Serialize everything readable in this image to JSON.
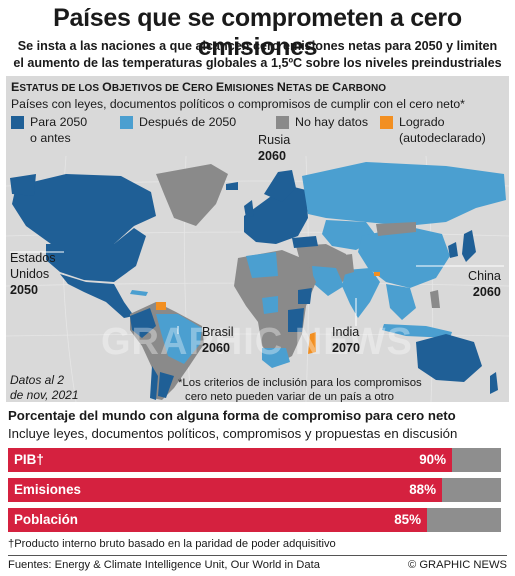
{
  "title": "Países que se comprometen a cero emisiones",
  "subtitle_line1": "Se insta a las naciones a que alcancen cero emisiones netas para 2050 y limiten",
  "subtitle_line2": "el aumento de las temperaturas globales a 1,5ºC sobre los niveles preindustriales",
  "map": {
    "heading_first": "E",
    "heading_words": [
      {
        "cap": "E",
        "rest": "STATUS DE LOS "
      },
      {
        "cap": "O",
        "rest": "BJETIVOS DE "
      },
      {
        "cap": "C",
        "rest": "ERO "
      },
      {
        "cap": "E",
        "rest": "MISIONES "
      },
      {
        "cap": "N",
        "rest": "ETAS DE "
      },
      {
        "cap": "C",
        "rest": "ARBONO"
      }
    ],
    "subheading": "Países con leyes, documentos políticos o compromisos de cumplir con el cero neto*",
    "legend": [
      {
        "line1": "Para 2050",
        "line2": "o antes",
        "color": "#1f5f96"
      },
      {
        "line1": "Después de 2050",
        "line2": "",
        "color": "#4b9fd0"
      },
      {
        "line1": "No hay datos",
        "line2": "",
        "color": "#8a8a8a"
      },
      {
        "line1": "Logrado",
        "line2": "(autodeclarado)",
        "color": "#f28f21"
      }
    ],
    "labels": {
      "usa_name1": "Estados",
      "usa_name2": "Unidos",
      "usa_year": "2050",
      "russia_name": "Rusia",
      "russia_year": "2060",
      "china_name": "China",
      "china_year": "2060",
      "brazil_name": "Brasil",
      "brazil_year": "2060",
      "india_name": "India",
      "india_year": "2070"
    },
    "date_note_line1": "Datos al 2",
    "date_note_line2": "de nov, 2021",
    "criteria_line1": "*Los criterios de inclusión para los compromisos",
    "criteria_line2": "cero neto pueden variar de un país a otro",
    "watermark": "GRAPHIC NEWS"
  },
  "bars": {
    "heading": "Porcentaje del mundo con alguna forma de compromiso para cero neto",
    "subheading": "Incluye leyes, documentos políticos, compromisos y propuestas en discusión",
    "items": [
      {
        "label": "PIB†",
        "value": 90,
        "display": "90%"
      },
      {
        "label": "Emisiones",
        "value": 88,
        "display": "88%"
      },
      {
        "label": "Población",
        "value": 85,
        "display": "85%"
      }
    ],
    "fill_color": "#d5213f",
    "rest_color": "#8e8e8e"
  },
  "footnote": "†Producto interno bruto basado en la paridad de poder adquisitivo",
  "sources": "Fuentes: Energy & Climate Intelligence Unit, Our World in Data",
  "credit": "© GRAPHIC NEWS"
}
